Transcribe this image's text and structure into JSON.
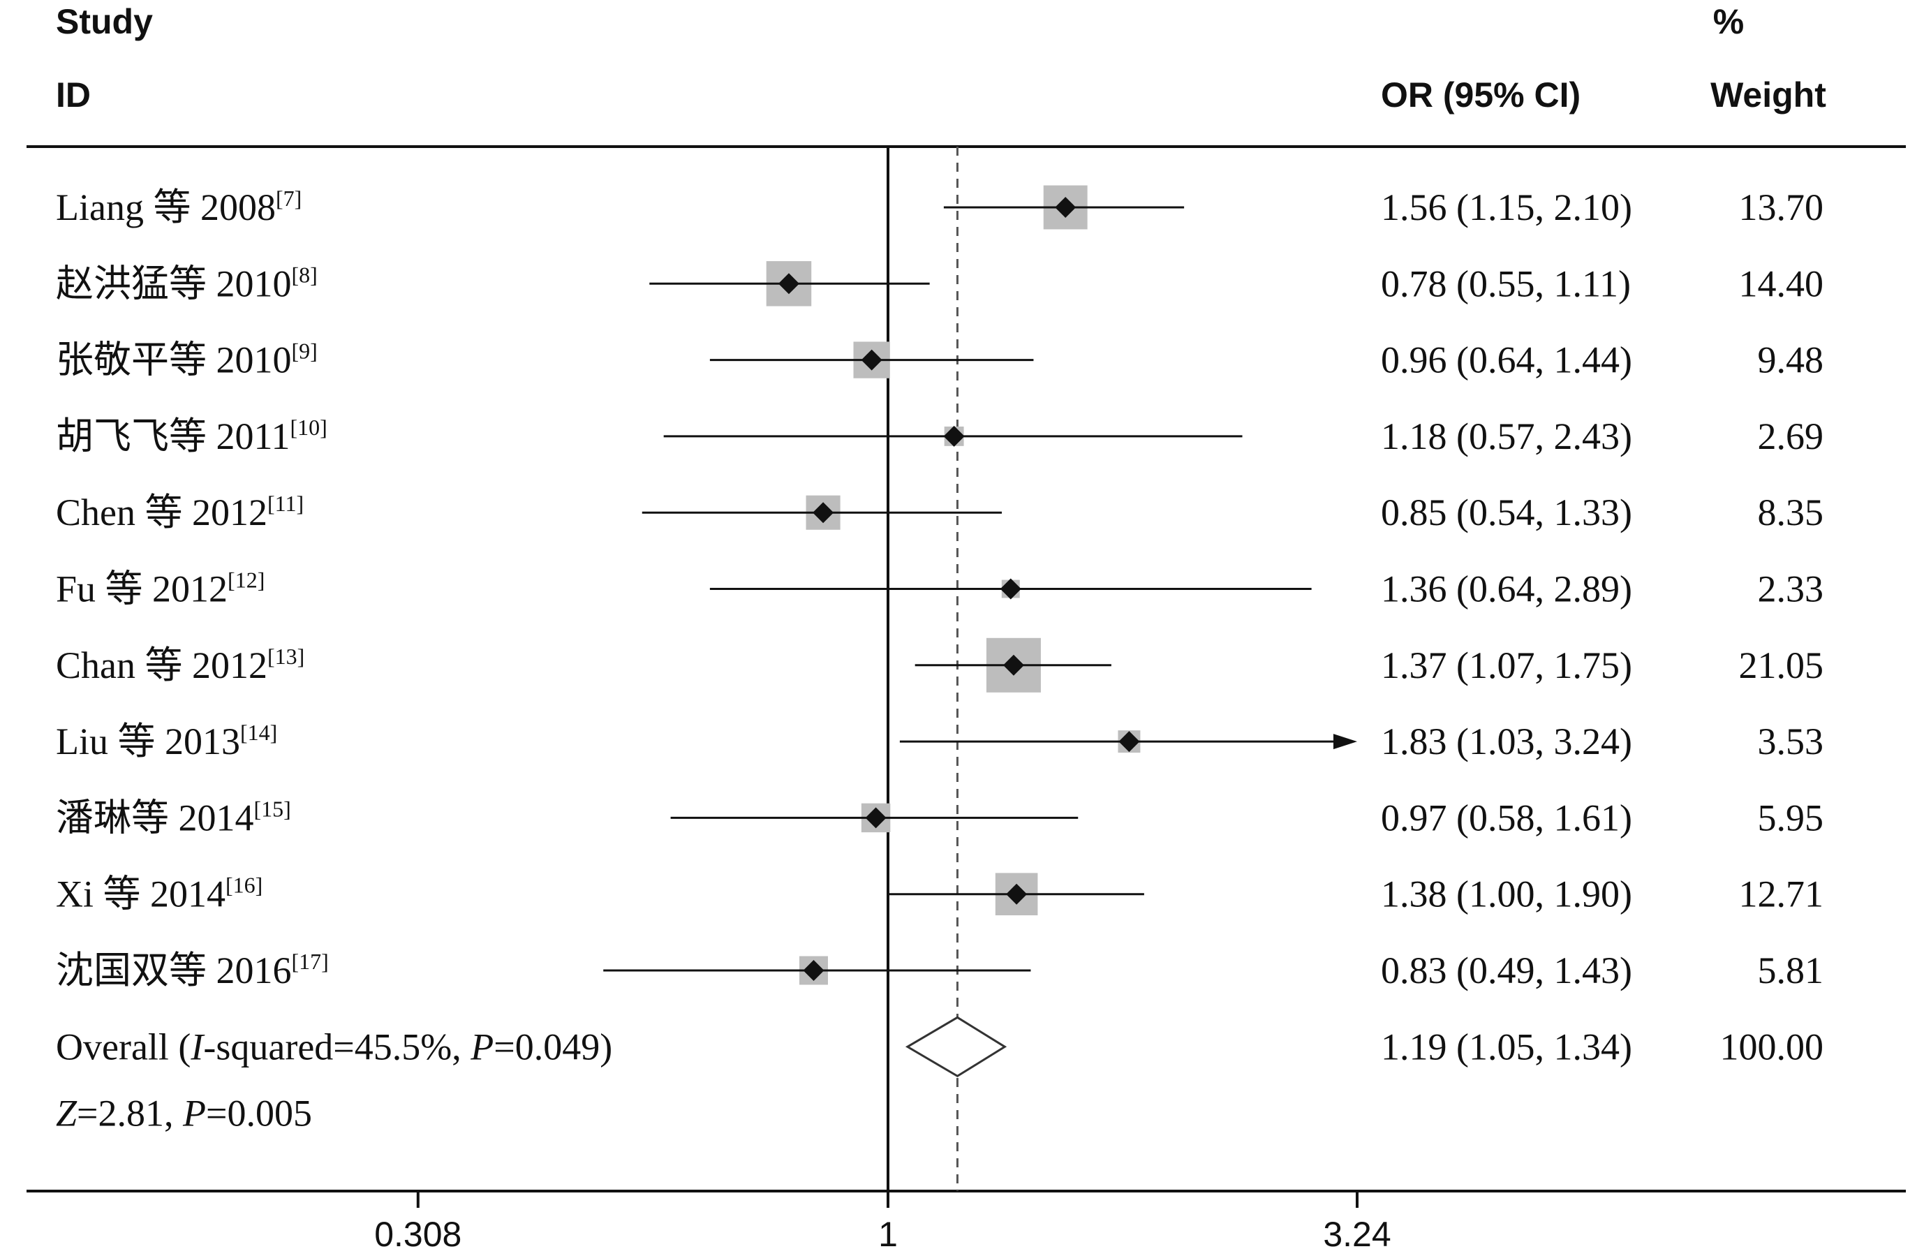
{
  "headers": {
    "study_top": "Study",
    "study_bottom": "ID",
    "or": "OR (95% CI)",
    "weight_top": "%",
    "weight_bottom": "Weight"
  },
  "chart_data": {
    "type": "forest",
    "x_scale": "log",
    "xlim": [
      0.308,
      3.24
    ],
    "x_ticks": [
      "0.308",
      "1",
      "3.24"
    ],
    "reference_line": 1,
    "pooled_line": 1.19,
    "grid": false,
    "studies": [
      {
        "name": "Liang 等 2008",
        "ref": "[7]",
        "or": 1.56,
        "lo": 1.15,
        "hi": 2.1,
        "ci_text": "1.56 (1.15, 2.10)",
        "weight": 13.7,
        "weight_text": "13.70"
      },
      {
        "name": "赵洪猛等 2010",
        "ref": "[8]",
        "or": 0.78,
        "lo": 0.55,
        "hi": 1.11,
        "ci_text": "0.78 (0.55, 1.11)",
        "weight": 14.4,
        "weight_text": "14.40"
      },
      {
        "name": "张敬平等 2010",
        "ref": "[9]",
        "or": 0.96,
        "lo": 0.64,
        "hi": 1.44,
        "ci_text": "0.96 (0.64, 1.44)",
        "weight": 9.48,
        "weight_text": "9.48"
      },
      {
        "name": "胡飞飞等 2011",
        "ref": "[10]",
        "or": 1.18,
        "lo": 0.57,
        "hi": 2.43,
        "ci_text": "1.18 (0.57, 2.43)",
        "weight": 2.69,
        "weight_text": "2.69"
      },
      {
        "name": "Chen 等 2012",
        "ref": "[11]",
        "or": 0.85,
        "lo": 0.54,
        "hi": 1.33,
        "ci_text": "0.85 (0.54, 1.33)",
        "weight": 8.35,
        "weight_text": "8.35"
      },
      {
        "name": "Fu 等 2012",
        "ref": "[12]",
        "or": 1.36,
        "lo": 0.64,
        "hi": 2.89,
        "ci_text": "1.36 (0.64, 2.89)",
        "weight": 2.33,
        "weight_text": "2.33"
      },
      {
        "name": "Chan 等 2012",
        "ref": "[13]",
        "or": 1.37,
        "lo": 1.07,
        "hi": 1.75,
        "ci_text": "1.37 (1.07, 1.75)",
        "weight": 21.05,
        "weight_text": "21.05"
      },
      {
        "name": "Liu 等 2013",
        "ref": "[14]",
        "or": 1.83,
        "lo": 1.03,
        "hi": 3.24,
        "ci_text": "1.83 (1.03, 3.24)",
        "weight": 3.53,
        "weight_text": "3.53",
        "arrow_right": true
      },
      {
        "name": "潘琳等 2014",
        "ref": "[15]",
        "or": 0.97,
        "lo": 0.58,
        "hi": 1.61,
        "ci_text": "0.97 (0.58, 1.61)",
        "weight": 5.95,
        "weight_text": "5.95"
      },
      {
        "name": "Xi 等 2014",
        "ref": "[16]",
        "or": 1.38,
        "lo": 1.0,
        "hi": 1.9,
        "ci_text": "1.38 (1.00, 1.90)",
        "weight": 12.71,
        "weight_text": "12.71"
      },
      {
        "name": "沈国双等 2016",
        "ref": "[17]",
        "or": 0.83,
        "lo": 0.49,
        "hi": 1.43,
        "ci_text": "0.83 (0.49, 1.43)",
        "weight": 5.81,
        "weight_text": "5.81"
      }
    ],
    "overall": {
      "label_prefix": "Overall (",
      "label_i": "I",
      "label_mid": "-squared=45.5%, ",
      "label_p": "P",
      "label_end": "=0.049)",
      "or": 1.19,
      "lo": 1.05,
      "hi": 1.34,
      "ci_text": "1.19 (1.05, 1.34)",
      "weight_text": "100.00"
    },
    "z_line": {
      "z": "Z",
      "z_val": "=2.81, ",
      "p": "P",
      "p_val": "=0.005"
    }
  }
}
